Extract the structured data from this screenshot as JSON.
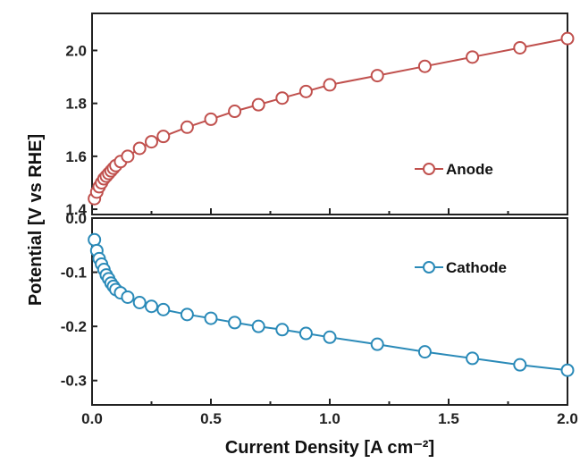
{
  "chart_data": [
    {
      "type": "line",
      "panel": "top",
      "ylabel": "Potential [V vs RHE]",
      "xlim": [
        0,
        2.0
      ],
      "ylim": [
        1.38,
        2.14
      ],
      "yticks": [
        "1.4",
        "1.6",
        "1.8",
        "2.0"
      ],
      "grid": false,
      "legend_position": "right",
      "series": [
        {
          "name": "Anode",
          "color": "#c0504d",
          "marker": "open-circle",
          "x": [
            0.01,
            0.02,
            0.03,
            0.04,
            0.05,
            0.06,
            0.07,
            0.08,
            0.09,
            0.1,
            0.12,
            0.15,
            0.2,
            0.25,
            0.3,
            0.4,
            0.5,
            0.6,
            0.7,
            0.8,
            0.9,
            1.0,
            1.2,
            1.4,
            1.6,
            1.8,
            2.0
          ],
          "y": [
            1.44,
            1.465,
            1.485,
            1.5,
            1.515,
            1.525,
            1.535,
            1.545,
            1.555,
            1.565,
            1.58,
            1.6,
            1.63,
            1.655,
            1.675,
            1.71,
            1.74,
            1.77,
            1.795,
            1.82,
            1.845,
            1.87,
            1.905,
            1.94,
            1.975,
            2.01,
            2.045
          ]
        }
      ]
    },
    {
      "type": "line",
      "panel": "bottom",
      "xlabel": "Current Density [A cm⁻²]",
      "ylabel": "Potential [V vs RHE]",
      "xlim": [
        0,
        2.0
      ],
      "ylim": [
        -0.345,
        0.0
      ],
      "xticks": [
        "0.0",
        "0.5",
        "1.0",
        "1.5",
        "2.0"
      ],
      "yticks": [
        "0.0",
        "-0.1",
        "-0.2",
        "-0.3"
      ],
      "grid": false,
      "legend_position": "right",
      "series": [
        {
          "name": "Cathode",
          "color": "#2a8ab8",
          "marker": "open-circle",
          "x": [
            0.01,
            0.02,
            0.03,
            0.04,
            0.05,
            0.06,
            0.07,
            0.08,
            0.09,
            0.1,
            0.12,
            0.15,
            0.2,
            0.25,
            0.3,
            0.4,
            0.5,
            0.6,
            0.7,
            0.8,
            0.9,
            1.0,
            1.2,
            1.4,
            1.6,
            1.8,
            2.0
          ],
          "y": [
            -0.04,
            -0.06,
            -0.075,
            -0.085,
            -0.095,
            -0.105,
            -0.112,
            -0.12,
            -0.126,
            -0.132,
            -0.138,
            -0.146,
            -0.156,
            -0.163,
            -0.169,
            -0.178,
            -0.185,
            -0.193,
            -0.2,
            -0.206,
            -0.213,
            -0.22,
            -0.233,
            -0.247,
            -0.259,
            -0.271,
            -0.281
          ]
        }
      ]
    }
  ]
}
